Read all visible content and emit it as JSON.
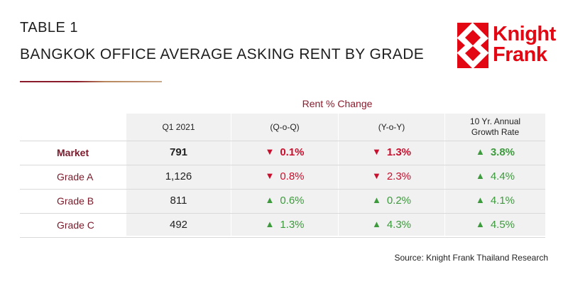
{
  "header": {
    "eyebrow": "TABLE 1",
    "title": "BANGKOK OFFICE AVERAGE ASKING RENT BY GRADE"
  },
  "logo": {
    "line1": "Knight",
    "line2": "Frank"
  },
  "colors": {
    "brand_red": "#e30613",
    "label_maroon": "#7a1a2b",
    "down_red": "#c8102e",
    "up_green": "#3d9a3d"
  },
  "chart_data": {
    "type": "table",
    "title": "BANGKOK OFFICE AVERAGE ASKING RENT BY GRADE",
    "group_header": "Rent % Change",
    "columns": [
      "Q1 2021",
      "(Q-o-Q)",
      "(Y-o-Y)",
      "10 Yr. Annual\nGrowth Rate"
    ],
    "rows": [
      {
        "label": "Market",
        "rent": "791",
        "qoq": {
          "dir": "down",
          "value": "0.1%"
        },
        "yoy": {
          "dir": "down",
          "value": "1.3%"
        },
        "cagr": {
          "dir": "up",
          "value": "3.8%"
        }
      },
      {
        "label": "Grade A",
        "rent": "1,126",
        "qoq": {
          "dir": "down",
          "value": "0.8%"
        },
        "yoy": {
          "dir": "down",
          "value": "2.3%"
        },
        "cagr": {
          "dir": "up",
          "value": "4.4%"
        }
      },
      {
        "label": "Grade B",
        "rent": "811",
        "qoq": {
          "dir": "up",
          "value": "0.6%"
        },
        "yoy": {
          "dir": "up",
          "value": "0.2%"
        },
        "cagr": {
          "dir": "up",
          "value": "4.1%"
        }
      },
      {
        "label": "Grade C",
        "rent": "492",
        "qoq": {
          "dir": "up",
          "value": "1.3%"
        },
        "yoy": {
          "dir": "up",
          "value": "4.3%"
        },
        "cagr": {
          "dir": "up",
          "value": "4.5%"
        }
      }
    ]
  },
  "source": "Source: Knight Frank Thailand Research"
}
